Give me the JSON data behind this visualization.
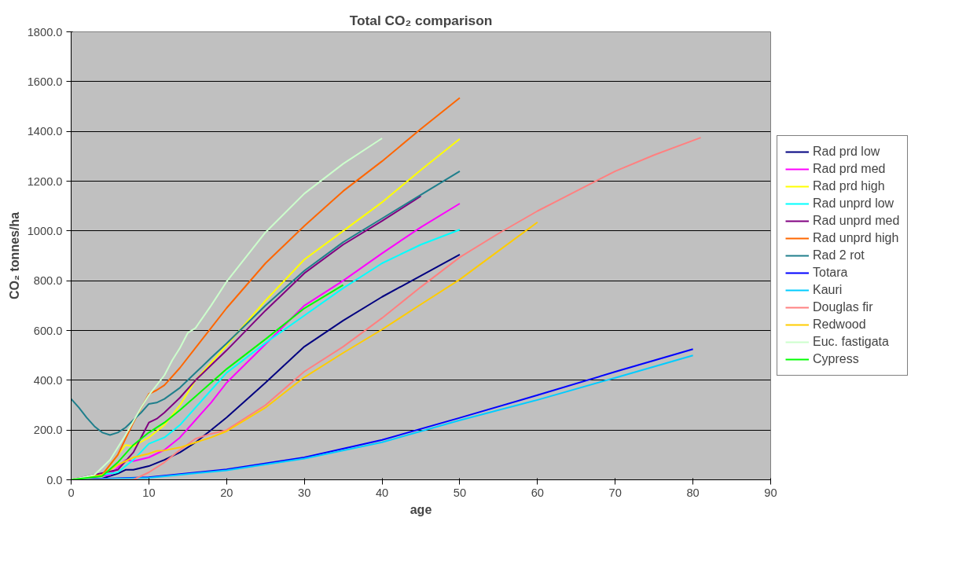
{
  "chart_data": {
    "type": "line",
    "title": "Total CO₂ comparison",
    "xlabel": "age",
    "ylabel": "CO₂ tonnes/ha",
    "xlim": [
      0,
      90
    ],
    "xticks": [
      0,
      10,
      20,
      30,
      40,
      50,
      60,
      70,
      80,
      90
    ],
    "ylim": [
      0,
      1800
    ],
    "yticks": [
      {
        "value": 0,
        "label": "0.0"
      },
      {
        "value": 200,
        "label": "200.0"
      },
      {
        "value": 400,
        "label": "400.0"
      },
      {
        "value": 600,
        "label": "600.0"
      },
      {
        "value": 800,
        "label": "800.0"
      },
      {
        "value": 1000,
        "label": "1000.0"
      },
      {
        "value": 1200,
        "label": "1200.0"
      },
      {
        "value": 1400,
        "label": "1400.0"
      },
      {
        "value": 1600,
        "label": "1600.0"
      },
      {
        "value": 1800,
        "label": "1800.0"
      }
    ],
    "grid": "y",
    "legend": "right",
    "marker": "none",
    "line_style": "solid",
    "series": [
      {
        "name": "Rad prd low",
        "color": "#000080",
        "x": [
          0,
          4,
          6,
          7,
          8,
          10,
          12,
          14,
          16,
          18,
          20,
          25,
          30,
          35,
          40,
          45,
          50
        ],
        "values": [
          0,
          5,
          25,
          40,
          40,
          55,
          80,
          110,
          150,
          200,
          250,
          390,
          535,
          640,
          735,
          820,
          905
        ]
      },
      {
        "name": "Rad prd med",
        "color": "#ff00ff",
        "x": [
          0,
          5,
          7,
          8,
          10,
          12,
          14,
          16,
          18,
          20,
          25,
          30,
          35,
          40,
          45,
          50
        ],
        "values": [
          0,
          20,
          80,
          75,
          90,
          120,
          170,
          240,
          310,
          390,
          545,
          700,
          800,
          910,
          1015,
          1110
        ]
      },
      {
        "name": "Rad prd high",
        "color": "#ffff00",
        "x": [
          0,
          4,
          6,
          7,
          8,
          10,
          12,
          14,
          16,
          18,
          20,
          25,
          30,
          35,
          40,
          45,
          50
        ],
        "values": [
          0,
          20,
          100,
          140,
          135,
          170,
          220,
          300,
          400,
          470,
          540,
          720,
          885,
          1000,
          1115,
          1245,
          1370
        ]
      },
      {
        "name": "Rad unprd low",
        "color": "#00ffff",
        "x": [
          0,
          6,
          8,
          10,
          12,
          14,
          16,
          18,
          20,
          25,
          30,
          35,
          40,
          45,
          50
        ],
        "values": [
          0,
          30,
          80,
          145,
          170,
          220,
          290,
          360,
          430,
          550,
          660,
          770,
          870,
          945,
          1005
        ]
      },
      {
        "name": "Rad unprd med",
        "color": "#800080",
        "x": [
          0,
          6,
          8,
          9,
          10,
          11,
          12,
          14,
          16,
          18,
          20,
          25,
          30,
          35,
          40,
          45
        ],
        "values": [
          0,
          40,
          110,
          170,
          230,
          245,
          270,
          330,
          400,
          460,
          520,
          680,
          830,
          945,
          1040,
          1140
        ]
      },
      {
        "name": "Rad unprd high",
        "color": "#ff6600",
        "x": [
          0,
          4,
          6,
          8,
          10,
          11,
          12,
          14,
          16,
          18,
          20,
          25,
          30,
          35,
          40,
          45,
          50
        ],
        "values": [
          0,
          20,
          100,
          230,
          345,
          360,
          380,
          450,
          530,
          610,
          690,
          870,
          1020,
          1160,
          1280,
          1410,
          1535
        ]
      },
      {
        "name": "Rad 2 rot",
        "color": "#1f7f8c",
        "x": [
          0,
          1,
          2,
          3,
          4,
          5,
          6,
          7,
          8,
          9,
          10,
          11,
          12,
          14,
          16,
          18,
          20,
          25,
          30,
          35,
          40,
          45,
          50
        ],
        "values": [
          325,
          290,
          250,
          215,
          190,
          180,
          190,
          210,
          240,
          270,
          305,
          310,
          325,
          370,
          430,
          490,
          548,
          700,
          840,
          955,
          1050,
          1145,
          1240
        ]
      },
      {
        "name": "Totara",
        "color": "#0000ff",
        "x": [
          0,
          10,
          20,
          30,
          40,
          50,
          60,
          70,
          80
        ],
        "values": [
          0,
          10,
          42,
          90,
          160,
          249,
          340,
          434,
          525
        ]
      },
      {
        "name": "Kauri",
        "color": "#00ccff",
        "x": [
          0,
          10,
          20,
          30,
          40,
          50,
          60,
          70,
          80
        ],
        "values": [
          0,
          8,
          38,
          85,
          151,
          239,
          321,
          410,
          500
        ]
      },
      {
        "name": "Douglas fir",
        "color": "#ff8080",
        "x": [
          0,
          8,
          10,
          12,
          14,
          16,
          18,
          20,
          25,
          30,
          35,
          40,
          45,
          50,
          55,
          60,
          65,
          70,
          75,
          81
        ],
        "values": [
          0,
          0,
          30,
          70,
          120,
          165,
          185,
          200,
          300,
          435,
          535,
          650,
          775,
          894,
          990,
          1080,
          1160,
          1240,
          1305,
          1375
        ]
      },
      {
        "name": "Redwood",
        "color": "#ffcc00",
        "x": [
          0,
          4,
          6,
          8,
          10,
          11,
          12,
          14,
          16,
          18,
          20,
          25,
          30,
          35,
          40,
          45,
          50,
          55,
          60
        ],
        "values": [
          0,
          20,
          60,
          90,
          105,
          116,
          118,
          130,
          150,
          170,
          195,
          290,
          412,
          510,
          604,
          705,
          805,
          920,
          1035
        ]
      },
      {
        "name": "Euc. fastigata",
        "color": "#ccffcc",
        "x": [
          0,
          3,
          5,
          7,
          9,
          10,
          12,
          13,
          14,
          15,
          16,
          18,
          20,
          25,
          30,
          35,
          40
        ],
        "values": [
          0,
          20,
          80,
          180,
          290,
          340,
          420,
          480,
          530,
          590,
          610,
          700,
          796,
          994,
          1150,
          1270,
          1372
        ]
      },
      {
        "name": "Cypress",
        "color": "#00ff00",
        "x": [
          0,
          4,
          6,
          8,
          10,
          12,
          14,
          16,
          18,
          20,
          25,
          30,
          35
        ],
        "values": [
          0,
          15,
          70,
          140,
          190,
          230,
          280,
          335,
          390,
          445,
          565,
          689,
          783
        ]
      }
    ]
  }
}
